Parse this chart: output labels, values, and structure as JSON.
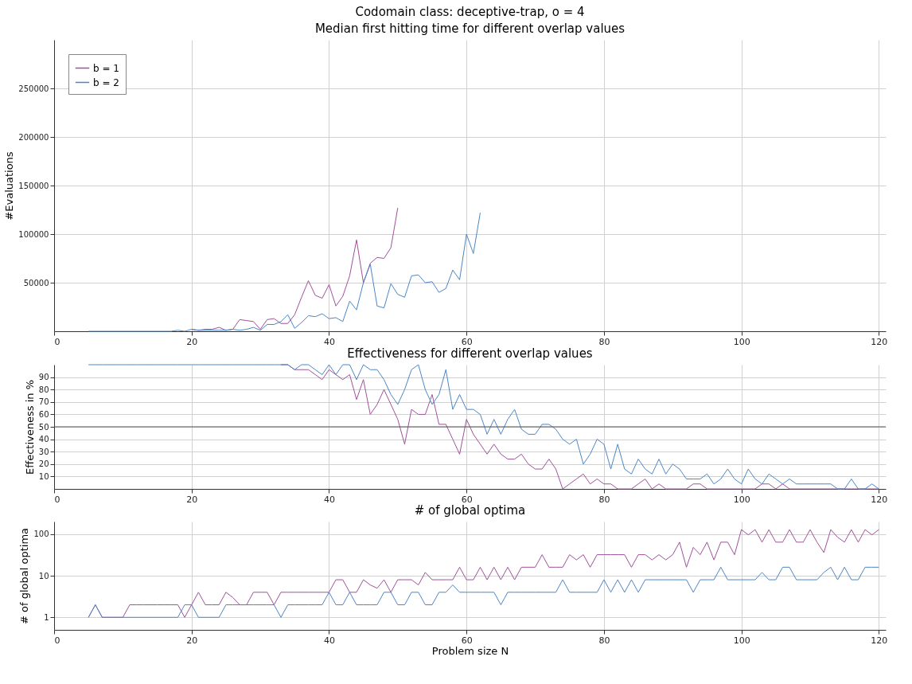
{
  "chart_data": [
    {
      "type": "line",
      "title": "Codomain class: deceptive-trap, o = 4",
      "subtitle": "Median first hitting time for different overlap values",
      "ylabel": "#Evaluations",
      "legend": "top left",
      "grid": true,
      "xlim": [
        0,
        121
      ],
      "xticks": [
        0,
        20,
        40,
        60,
        80,
        100,
        120
      ],
      "ylim": [
        0,
        300000
      ],
      "yticks": [
        50000,
        100000,
        150000,
        200000,
        250000
      ],
      "x": [
        5,
        6,
        7,
        8,
        9,
        10,
        11,
        12,
        13,
        14,
        15,
        16,
        17,
        18,
        19,
        20,
        21,
        22,
        23,
        24,
        25,
        26,
        27,
        28,
        29,
        30,
        31,
        32,
        33,
        34,
        35,
        36,
        37,
        38,
        39,
        40,
        41,
        42,
        43,
        44,
        45,
        46,
        47,
        48,
        49,
        50,
        51,
        52,
        53,
        54,
        55,
        56,
        57,
        58,
        59,
        60,
        61,
        62
      ],
      "series": [
        {
          "name": "b = 1",
          "color": "#a0509a",
          "values": [
            null,
            null,
            null,
            null,
            null,
            null,
            null,
            null,
            null,
            null,
            null,
            null,
            null,
            null,
            null,
            2000,
            1000,
            2000,
            2000,
            4000,
            1000,
            2000,
            12000,
            11000,
            10000,
            2000,
            12000,
            13000,
            8000,
            8000,
            17000,
            35000,
            52000,
            37000,
            34000,
            48000,
            26000,
            36000,
            57000,
            94000,
            50000,
            70000,
            76000,
            75000,
            86000,
            127000,
            null,
            null,
            null,
            null,
            null,
            null,
            null,
            null,
            null,
            null,
            null,
            null
          ]
        },
        {
          "name": "b = 2",
          "color": "#4a86c8",
          "values": [
            0,
            0,
            0,
            0,
            0,
            0,
            0,
            0,
            0,
            0,
            0,
            0,
            0,
            1000,
            0,
            2000,
            1000,
            1000,
            1000,
            1000,
            1000,
            2000,
            1000,
            2000,
            4000,
            1000,
            7000,
            7000,
            10000,
            17000,
            3000,
            9000,
            16000,
            15000,
            18000,
            13000,
            14000,
            10000,
            31000,
            22000,
            50000,
            69000,
            26000,
            24000,
            49000,
            38000,
            35000,
            57000,
            58000,
            50000,
            51000,
            40000,
            44000,
            63000,
            53000,
            100000,
            80000,
            122000
          ]
        }
      ]
    },
    {
      "type": "line",
      "title": "Effectiveness for different overlap values",
      "ylabel": "Effectiveness in %",
      "grid": true,
      "xlim": [
        0,
        121
      ],
      "xticks": [
        0,
        20,
        40,
        60,
        80,
        100,
        120
      ],
      "ylim": [
        0,
        100
      ],
      "yticks": [
        10,
        20,
        30,
        40,
        50,
        60,
        70,
        80,
        90
      ],
      "ref_lines": [
        {
          "axis": "y",
          "value": 50,
          "color": "#555555"
        }
      ],
      "x": [
        5,
        6,
        7,
        8,
        9,
        10,
        11,
        12,
        13,
        14,
        15,
        16,
        17,
        18,
        19,
        20,
        21,
        22,
        23,
        24,
        25,
        26,
        27,
        28,
        29,
        30,
        31,
        32,
        33,
        34,
        35,
        36,
        37,
        38,
        39,
        40,
        41,
        42,
        43,
        44,
        45,
        46,
        47,
        48,
        49,
        50,
        51,
        52,
        53,
        54,
        55,
        56,
        57,
        58,
        59,
        60,
        61,
        62,
        63,
        64,
        65,
        66,
        67,
        68,
        69,
        70,
        71,
        72,
        73,
        74,
        75,
        76,
        77,
        78,
        79,
        80,
        81,
        82,
        83,
        84,
        85,
        86,
        87,
        88,
        89,
        90,
        91,
        92,
        93,
        94,
        95,
        96,
        97,
        98,
        99,
        100,
        101,
        102,
        103,
        104,
        105,
        106,
        107,
        108,
        109,
        110,
        111,
        112,
        113,
        114,
        115,
        116,
        117,
        118,
        119,
        120
      ],
      "series": [
        {
          "color": "#a0509a",
          "values": [
            null,
            null,
            null,
            null,
            null,
            null,
            null,
            null,
            null,
            null,
            null,
            null,
            null,
            null,
            null,
            null,
            null,
            null,
            null,
            null,
            null,
            null,
            null,
            null,
            null,
            null,
            null,
            null,
            100,
            100,
            96,
            96,
            96,
            92,
            88,
            96,
            92,
            88,
            92,
            72,
            88,
            60,
            68,
            80,
            68,
            56,
            36,
            64,
            60,
            60,
            76,
            52,
            52,
            40,
            28,
            56,
            44,
            36,
            28,
            36,
            28,
            24,
            24,
            28,
            20,
            16,
            16,
            24,
            16,
            0,
            4,
            8,
            12,
            4,
            8,
            4,
            4,
            0,
            0,
            0,
            4,
            8,
            0,
            4,
            0,
            0,
            0,
            0,
            4,
            4,
            0,
            0,
            0,
            0,
            0,
            0,
            0,
            0,
            4,
            4,
            0,
            4,
            0,
            0,
            0,
            0,
            0,
            0,
            0,
            0,
            0,
            0,
            0,
            0,
            0,
            0
          ]
        },
        {
          "color": "#4a86c8",
          "values": [
            100,
            100,
            100,
            100,
            100,
            100,
            100,
            100,
            100,
            100,
            100,
            100,
            100,
            100,
            100,
            100,
            100,
            100,
            100,
            100,
            100,
            100,
            100,
            100,
            100,
            100,
            100,
            100,
            100,
            100,
            96,
            100,
            100,
            96,
            92,
            100,
            92,
            100,
            100,
            88,
            100,
            96,
            96,
            88,
            76,
            68,
            80,
            96,
            100,
            80,
            68,
            76,
            96,
            64,
            76,
            64,
            64,
            60,
            44,
            56,
            44,
            56,
            64,
            48,
            44,
            44,
            52,
            52,
            48,
            40,
            36,
            40,
            20,
            28,
            40,
            36,
            16,
            36,
            16,
            12,
            24,
            16,
            12,
            24,
            12,
            20,
            16,
            8,
            8,
            8,
            12,
            4,
            8,
            16,
            8,
            4,
            16,
            8,
            4,
            12,
            8,
            4,
            8,
            4,
            4,
            4,
            4,
            4,
            4,
            0,
            0,
            8,
            0,
            0,
            4,
            0
          ]
        }
      ]
    },
    {
      "type": "line",
      "title": "# of global optima",
      "xlabel": "Problem size N",
      "ylabel": "# of global optima",
      "grid": true,
      "log": true,
      "xlim": [
        0,
        121
      ],
      "xticks": [
        0,
        20,
        40,
        60,
        80,
        100,
        120
      ],
      "ylim": [
        0.5,
        200
      ],
      "yticks": [
        1,
        10,
        100
      ],
      "x": [
        5,
        6,
        7,
        8,
        9,
        10,
        11,
        12,
        13,
        14,
        15,
        16,
        17,
        18,
        19,
        20,
        21,
        22,
        23,
        24,
        25,
        26,
        27,
        28,
        29,
        30,
        31,
        32,
        33,
        34,
        35,
        36,
        37,
        38,
        39,
        40,
        41,
        42,
        43,
        44,
        45,
        46,
        47,
        48,
        49,
        50,
        51,
        52,
        53,
        54,
        55,
        56,
        57,
        58,
        59,
        60,
        61,
        62,
        63,
        64,
        65,
        66,
        67,
        68,
        69,
        70,
        71,
        72,
        73,
        74,
        75,
        76,
        77,
        78,
        79,
        80,
        81,
        82,
        83,
        84,
        85,
        86,
        87,
        88,
        89,
        90,
        91,
        92,
        93,
        94,
        95,
        96,
        97,
        98,
        99,
        100,
        101,
        102,
        103,
        104,
        105,
        106,
        107,
        108,
        109,
        110,
        111,
        112,
        113,
        114,
        115,
        116,
        117,
        118,
        119,
        120
      ],
      "series": [
        {
          "color": "#a0509a",
          "values": [
            1,
            2,
            1,
            1,
            1,
            1,
            2,
            2,
            2,
            2,
            2,
            2,
            2,
            2,
            1,
            2,
            4,
            2,
            2,
            2,
            4,
            3,
            2,
            2,
            4,
            4,
            4,
            2,
            4,
            4,
            4,
            4,
            4,
            4,
            4,
            4,
            8,
            8,
            4,
            4,
            8,
            6,
            5,
            8,
            4,
            8,
            8,
            8,
            6,
            12,
            8,
            8,
            8,
            8,
            16,
            8,
            8,
            16,
            8,
            16,
            8,
            16,
            8,
            16,
            16,
            16,
            32,
            16,
            16,
            16,
            32,
            24,
            32,
            16,
            32,
            32,
            32,
            32,
            32,
            16,
            32,
            32,
            24,
            32,
            24,
            32,
            64,
            16,
            48,
            32,
            64,
            24,
            64,
            64,
            32,
            128,
            96,
            128,
            64,
            128,
            64,
            64,
            128,
            64,
            64,
            128,
            64,
            36,
            128,
            84,
            64,
            128,
            64,
            128,
            96,
            128
          ]
        },
        {
          "color": "#4a86c8",
          "values": [
            1,
            2,
            1,
            1,
            1,
            1,
            1,
            1,
            1,
            1,
            1,
            1,
            1,
            1,
            2,
            2,
            1,
            1,
            1,
            1,
            2,
            2,
            2,
            2,
            2,
            2,
            2,
            2,
            1,
            2,
            2,
            2,
            2,
            2,
            2,
            4,
            2,
            2,
            4,
            2,
            2,
            2,
            2,
            4,
            4,
            2,
            2,
            4,
            4,
            2,
            2,
            4,
            4,
            6,
            4,
            4,
            4,
            4,
            4,
            4,
            2,
            4,
            4,
            4,
            4,
            4,
            4,
            4,
            4,
            8,
            4,
            4,
            4,
            4,
            4,
            8,
            4,
            8,
            4,
            8,
            4,
            8,
            8,
            8,
            8,
            8,
            8,
            8,
            4,
            8,
            8,
            8,
            16,
            8,
            8,
            8,
            8,
            8,
            12,
            8,
            8,
            16,
            16,
            8,
            8,
            8,
            8,
            12,
            16,
            8,
            16,
            8,
            8,
            16,
            16,
            16
          ]
        }
      ]
    }
  ]
}
